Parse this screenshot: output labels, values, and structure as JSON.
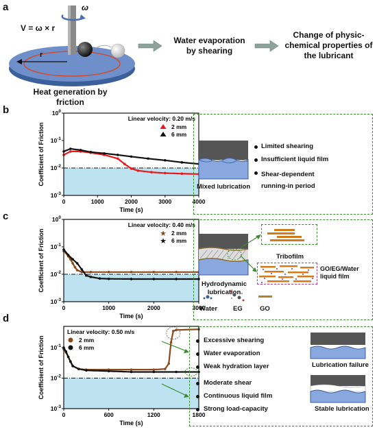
{
  "panel_a": {
    "letter": "a",
    "formula": "V = ω × r",
    "omega": "ω",
    "r": "r",
    "caption": "Heat generation by friction",
    "step2": "Water evaporation by shearing",
    "step3": "Change of physic-chemical properties of the lubricant"
  },
  "panel_b": {
    "letter": "b",
    "box_caption": "Mixed lubrication",
    "bullets": [
      "Limited shearing",
      "Insufficient liquid film",
      "Shear-dependent running-in period"
    ]
  },
  "panel_c": {
    "letter": "c",
    "box_caption": "Hydrodynamic lubrication",
    "tribofilm": "Tribofilm",
    "film_label": "GO/EG/Water liquid film",
    "legend": [
      "Water",
      "EG",
      "GO"
    ]
  },
  "panel_d": {
    "letter": "d",
    "bullets_top": [
      "Excessive shearing",
      "Water evaporation",
      "Weak hydration layer"
    ],
    "bullets_bottom": [
      "Moderate shear",
      "Continuous liquid film",
      "Strong load-capacity"
    ],
    "fail_caption": "Lubrication failure",
    "stable_caption": "Stable lubrication"
  },
  "chart_data": [
    {
      "type": "line",
      "ylabel": "Coefficient of Friction",
      "xlabel": "Time (s)",
      "annotation": "Linear velocity: 0.20 m/s",
      "xlim": [
        0,
        4000
      ],
      "ylim": [
        0.001,
        1
      ],
      "yscale": "log",
      "xticks": [
        0,
        1000,
        2000,
        3000,
        4000
      ],
      "yticks": [
        "10^-3",
        "10^-2",
        "10^-1",
        "10^0"
      ],
      "reference_line": 0.01,
      "series": [
        {
          "name": "2 mm",
          "color": "#e8191b",
          "x": [
            0,
            200,
            500,
            800,
            1200,
            1600,
            1800,
            2000,
            2200,
            2600,
            3000,
            3500,
            4000
          ],
          "y": [
            0.03,
            0.04,
            0.04,
            0.036,
            0.03,
            0.022,
            0.014,
            0.0095,
            0.008,
            0.007,
            0.0065,
            0.0062,
            0.006
          ]
        },
        {
          "name": "6 mm",
          "color": "#111111",
          "x": [
            0,
            200,
            500,
            800,
            1200,
            1600,
            2000,
            2500,
            3000,
            3500,
            4000
          ],
          "y": [
            0.04,
            0.05,
            0.045,
            0.038,
            0.034,
            0.03,
            0.026,
            0.022,
            0.019,
            0.016,
            0.014
          ]
        }
      ]
    },
    {
      "type": "line",
      "ylabel": "Coefficient of Friction",
      "xlabel": "Time (s)",
      "annotation": "Linear velocity: 0.40 m/s",
      "xlim": [
        0,
        3000
      ],
      "ylim": [
        0.001,
        1
      ],
      "yscale": "log",
      "xticks": [
        0,
        1000,
        2000,
        3000
      ],
      "yticks": [
        "10^-3",
        "10^-2",
        "10^-1",
        "10^0"
      ],
      "reference_line": 0.01,
      "series": [
        {
          "name": "2 mm",
          "color": "#8b4a1c",
          "x": [
            0,
            50,
            100,
            150,
            200,
            250,
            300,
            400,
            600,
            1000,
            1500,
            2000,
            2500,
            3000
          ],
          "y": [
            0.07,
            0.06,
            0.045,
            0.035,
            0.025,
            0.018,
            0.014,
            0.012,
            0.012,
            0.012,
            0.012,
            0.012,
            0.012,
            0.012
          ]
        },
        {
          "name": "6 mm",
          "color": "#111111",
          "x": [
            0,
            100,
            200,
            300,
            400,
            500,
            600,
            800,
            1000,
            1500,
            2000,
            2500,
            3000
          ],
          "y": [
            0.08,
            0.05,
            0.035,
            0.025,
            0.015,
            0.009,
            0.008,
            0.007,
            0.0068,
            0.0067,
            0.0067,
            0.0067,
            0.0067
          ]
        }
      ]
    },
    {
      "type": "line",
      "ylabel": "Coefficient of Friction",
      "xlabel": "Time (s)",
      "annotation": "Linear velocity: 0.50 m/s",
      "xlim": [
        0,
        1800
      ],
      "ylim": [
        0.001,
        0.5
      ],
      "yscale": "log",
      "xticks": [
        0,
        600,
        1200,
        1800
      ],
      "yticks": [
        "10^-3",
        "10^-2",
        "10^-1"
      ],
      "reference_line": 0.01,
      "series": [
        {
          "name": "2 mm",
          "color": "#8b4a1c",
          "x": [
            0,
            30,
            60,
            90,
            120,
            200,
            300,
            600,
            900,
            1200,
            1350,
            1400,
            1430,
            1460,
            1500,
            1800
          ],
          "y": [
            0.09,
            0.07,
            0.05,
            0.035,
            0.025,
            0.02,
            0.019,
            0.019,
            0.019,
            0.019,
            0.02,
            0.03,
            0.15,
            0.35,
            0.38,
            0.4
          ]
        },
        {
          "name": "6 mm",
          "color": "#111111",
          "x": [
            0,
            30,
            60,
            90,
            120,
            200,
            300,
            600,
            900,
            1200,
            1500,
            1800
          ],
          "y": [
            0.1,
            0.075,
            0.05,
            0.035,
            0.025,
            0.02,
            0.018,
            0.017,
            0.016,
            0.016,
            0.016,
            0.016
          ]
        }
      ]
    }
  ]
}
